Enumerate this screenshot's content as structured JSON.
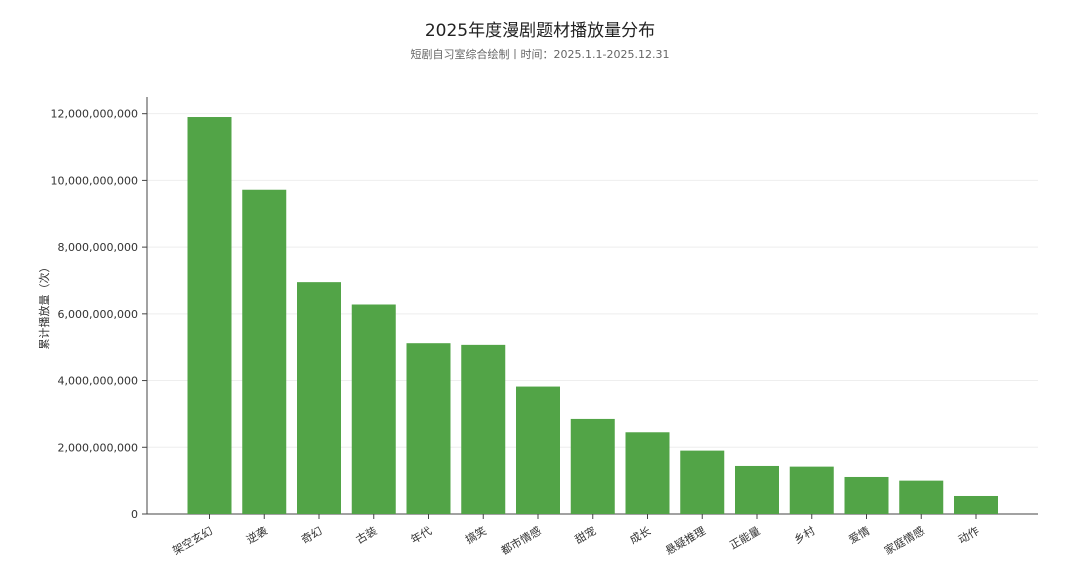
{
  "chart_data": {
    "type": "bar",
    "title": "2025年度漫剧题材播放量分布",
    "subtitle": "短剧自习室综合绘制丨时间：2025.1.1-2025.12.31",
    "xlabel": "",
    "ylabel": "累计播放量（次）",
    "ylim": [
      0,
      12500000000
    ],
    "yticks": [
      0,
      2000000000,
      4000000000,
      6000000000,
      8000000000,
      10000000000,
      12000000000
    ],
    "ytick_labels": [
      "0",
      "2,000,000,000",
      "4,000,000,000",
      "6,000,000,000",
      "8,000,000,000",
      "10,000,000,000",
      "12,000,000,000"
    ],
    "grid": true,
    "bar_color": "#52a447",
    "categories": [
      "架空玄幻",
      "逆袭",
      "奇幻",
      "古装",
      "年代",
      "搞笑",
      "都市情感",
      "甜宠",
      "成长",
      "悬疑推理",
      "正能量",
      "乡村",
      "爱情",
      "家庭情感",
      "动作"
    ],
    "values": [
      11900000000,
      9720000000,
      6950000000,
      6280000000,
      5120000000,
      5070000000,
      3820000000,
      2850000000,
      2450000000,
      1900000000,
      1440000000,
      1420000000,
      1110000000,
      1000000000,
      540000000
    ]
  }
}
